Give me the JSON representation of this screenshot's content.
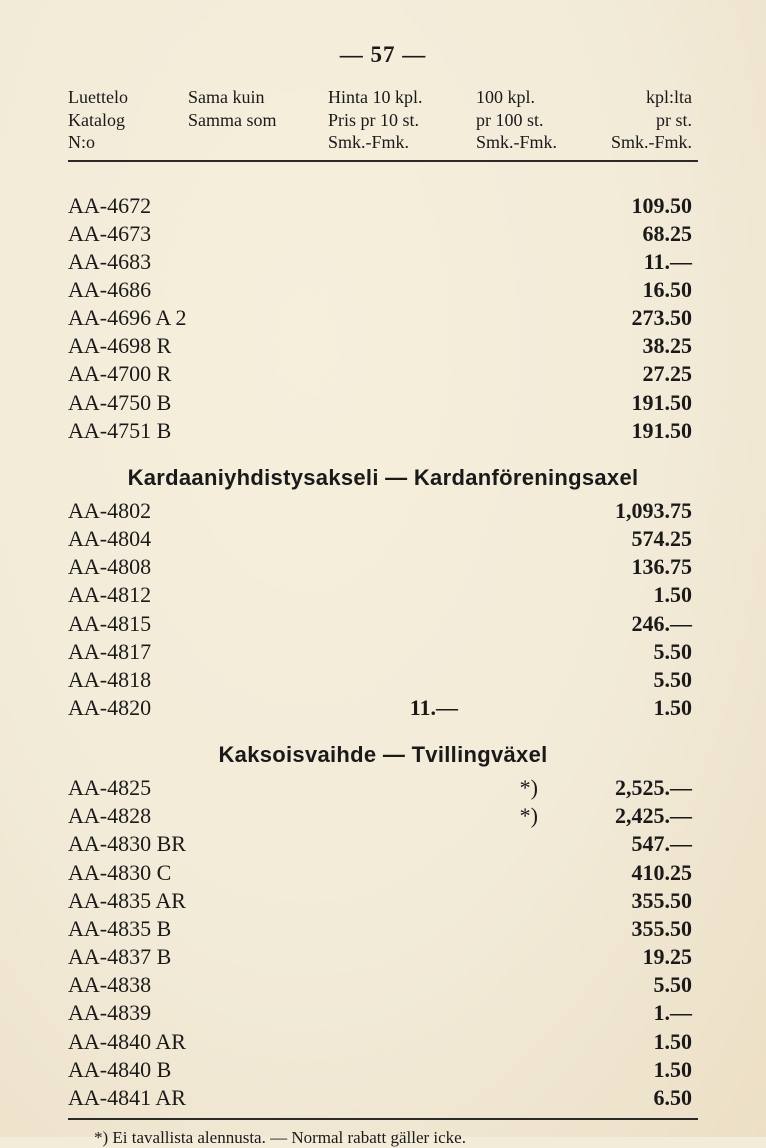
{
  "page_number": "— 57 —",
  "header": {
    "c1": [
      "Luettelo",
      "Katalog",
      "N:o"
    ],
    "c2": [
      "Sama kuin",
      "Samma som",
      ""
    ],
    "c3": [
      "Hinta 10 kpl.",
      "Pris pr 10 st.",
      "Smk.-Fmk."
    ],
    "c4": [
      "100 kpl.",
      "pr 100 st.",
      "Smk.-Fmk."
    ],
    "c5": [
      "kpl:lta",
      "pr st.",
      "Smk.-Fmk."
    ]
  },
  "section1_rows": [
    {
      "code": "AA-4672",
      "mid": "",
      "note": "",
      "price": "109.50"
    },
    {
      "code": "AA-4673",
      "mid": "",
      "note": "",
      "price": "68.25"
    },
    {
      "code": "AA-4683",
      "mid": "",
      "note": "",
      "price": "11.—"
    },
    {
      "code": "AA-4686",
      "mid": "",
      "note": "",
      "price": "16.50"
    },
    {
      "code": "AA-4696 A 2",
      "mid": "",
      "note": "",
      "price": "273.50"
    },
    {
      "code": "AA-4698 R",
      "mid": "",
      "note": "",
      "price": "38.25"
    },
    {
      "code": "AA-4700 R",
      "mid": "",
      "note": "",
      "price": "27.25"
    },
    {
      "code": "AA-4750 B",
      "mid": "",
      "note": "",
      "price": "191.50"
    },
    {
      "code": "AA-4751 B",
      "mid": "",
      "note": "",
      "price": "191.50"
    }
  ],
  "section2_title": "Kardaaniyhdistysakseli — Kardanföreningsaxel",
  "section2_rows": [
    {
      "code": "AA-4802",
      "mid": "",
      "note": "",
      "price": "1,093.75"
    },
    {
      "code": "AA-4804",
      "mid": "",
      "note": "",
      "price": "574.25"
    },
    {
      "code": "AA-4808",
      "mid": "",
      "note": "",
      "price": "136.75"
    },
    {
      "code": "AA-4812",
      "mid": "",
      "note": "",
      "price": "1.50"
    },
    {
      "code": "AA-4815",
      "mid": "",
      "note": "",
      "price": "246.—"
    },
    {
      "code": "AA-4817",
      "mid": "",
      "note": "",
      "price": "5.50"
    },
    {
      "code": "AA-4818",
      "mid": "",
      "note": "",
      "price": "5.50"
    },
    {
      "code": "AA-4820",
      "mid": "11.—",
      "note": "",
      "price": "1.50"
    }
  ],
  "section3_title": "Kaksoisvaihde — Tvillingväxel",
  "section3_rows": [
    {
      "code": "AA-4825",
      "mid": "",
      "note": "*)",
      "price": "2,525.—"
    },
    {
      "code": "AA-4828",
      "mid": "",
      "note": "*)",
      "price": "2,425.—"
    },
    {
      "code": "AA-4830 BR",
      "mid": "",
      "note": "",
      "price": "547.—"
    },
    {
      "code": "AA-4830 C",
      "mid": "",
      "note": "",
      "price": "410.25"
    },
    {
      "code": "AA-4835 AR",
      "mid": "",
      "note": "",
      "price": "355.50"
    },
    {
      "code": "AA-4835 B",
      "mid": "",
      "note": "",
      "price": "355.50"
    },
    {
      "code": "AA-4837 B",
      "mid": "",
      "note": "",
      "price": "19.25"
    },
    {
      "code": "AA-4838",
      "mid": "",
      "note": "",
      "price": "5.50"
    },
    {
      "code": "AA-4839",
      "mid": "",
      "note": "",
      "price": "1.—"
    },
    {
      "code": "AA-4840 AR",
      "mid": "",
      "note": "",
      "price": "1.50"
    },
    {
      "code": "AA-4840 B",
      "mid": "",
      "note": "",
      "price": "1.50"
    },
    {
      "code": "AA-4841 AR",
      "mid": "",
      "note": "",
      "price": "6.50"
    }
  ],
  "footnote": "*) Ei tavallista alennusta. — Normal rabatt gäller icke."
}
